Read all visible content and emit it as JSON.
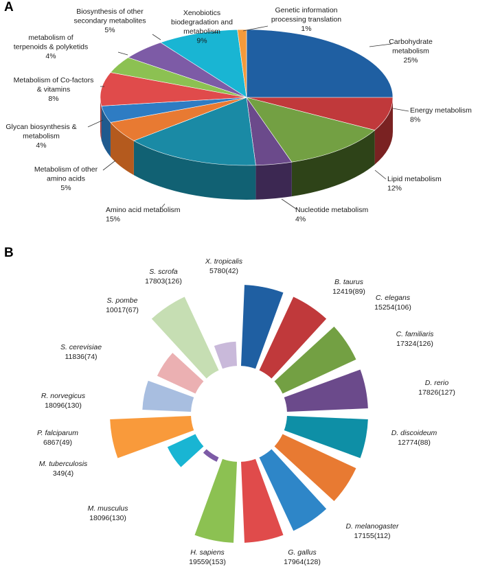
{
  "chart_data": [
    {
      "type": "pie",
      "panel": "A",
      "style": "3d",
      "unit": "%",
      "slices": [
        {
          "label": "Carbohydrate metabolism",
          "value": 25,
          "value_text": "25%",
          "color": "#1F5FA2",
          "side": "#14406E"
        },
        {
          "label": "Energy metabolism",
          "value": 8,
          "value_text": "8%",
          "color": "#C0393B",
          "side": "#7A2222"
        },
        {
          "label": "Lipid metabolism",
          "value": 12,
          "value_text": "12%",
          "color": "#73A043",
          "side": "#2E4318"
        },
        {
          "label": "Nucleotide metabolism",
          "value": 4,
          "value_text": "4%",
          "color": "#6B4A8B",
          "side": "#3C2852"
        },
        {
          "label": "Amino acid metabolism",
          "value": 15,
          "value_text": "15%",
          "color": "#1A8AA5",
          "side": "#116173"
        },
        {
          "label": "Metabolism of other amino acids",
          "value": 5,
          "value_text": "5%",
          "color": "#E87A32",
          "side": "#B45A1E"
        },
        {
          "label": "Glycan biosynthesis & metabolism",
          "value": 4,
          "value_text": "4%",
          "color": "#2E7CC3",
          "side": "#1F5A8E"
        },
        {
          "label": "Metabolism of Co-factors & vitamins",
          "value": 8,
          "value_text": "8%",
          "color": "#E04B4B",
          "side": "#A33434"
        },
        {
          "label": "metabolism of terpenoids & polyketids",
          "value": 4,
          "value_text": "4%",
          "color": "#8CC152",
          "side": "#5E8A35"
        },
        {
          "label": "Biosynthesis of other secondary metabolites",
          "value": 5,
          "value_text": "5%",
          "color": "#7D5BA6",
          "side": "#56407A"
        },
        {
          "label": "Xenobiotics biodegradation and metabolism",
          "value": 9,
          "value_text": "9%",
          "color": "#19B5D3",
          "side": "#1290A8"
        },
        {
          "label": "Genetic information processing translation",
          "value": 1,
          "value_text": "1%",
          "color": "#F39A3B",
          "side": "#C47A2A"
        }
      ]
    },
    {
      "type": "pie",
      "panel": "B",
      "style": "exploded",
      "slices": [
        {
          "name": "B. taurus",
          "count": "12419(89)",
          "value": 1,
          "color": "#1F5FA2"
        },
        {
          "name": "C. elegans",
          "count": "15254(106)",
          "value": 1,
          "color": "#C0393B"
        },
        {
          "name": "C. familiaris",
          "count": "17324(126)",
          "value": 1,
          "color": "#73A043"
        },
        {
          "name": "D. rerio",
          "count": "17826(127)",
          "value": 1,
          "color": "#6B4A8B"
        },
        {
          "name": "D. discoideum",
          "count": "12774(88)",
          "value": 1,
          "color": "#0E8FA6"
        },
        {
          "name": "D. melanogaster",
          "count": "17155(112)",
          "value": 1,
          "color": "#E87A32"
        },
        {
          "name": "G. gallus",
          "count": "17964(128)",
          "value": 1,
          "color": "#2E86C8"
        },
        {
          "name": "H. sapiens",
          "count": "19559(153)",
          "value": 1,
          "color": "#E04B4B"
        },
        {
          "name": "M. musculus",
          "count": "18096(130)",
          "value": 1,
          "color": "#8CC152"
        },
        {
          "name": "M. tuberculosis",
          "count": "349(4)",
          "value": 0.06,
          "color": "#7D5BA6"
        },
        {
          "name": "P. falciparum",
          "count": "6867(49)",
          "value": 0.38,
          "color": "#19B5D3"
        },
        {
          "name": "R. norvegicus",
          "count": "18096(130)",
          "value": 1,
          "color": "#F99A3B"
        },
        {
          "name": "S. cerevisiae",
          "count": "11836(74)",
          "value": 0.6,
          "color": "#A8BEE0"
        },
        {
          "name": "S. pombe",
          "count": "10017(67)",
          "value": 0.52,
          "color": "#EBB0B2"
        },
        {
          "name": "S. scrofa",
          "count": "17803(126)",
          "value": 1,
          "color": "#C6DEB3"
        },
        {
          "name": "X. tropicalis",
          "count": "5780(42)",
          "value": 0.3,
          "color": "#C9B9DA"
        }
      ]
    }
  ]
}
